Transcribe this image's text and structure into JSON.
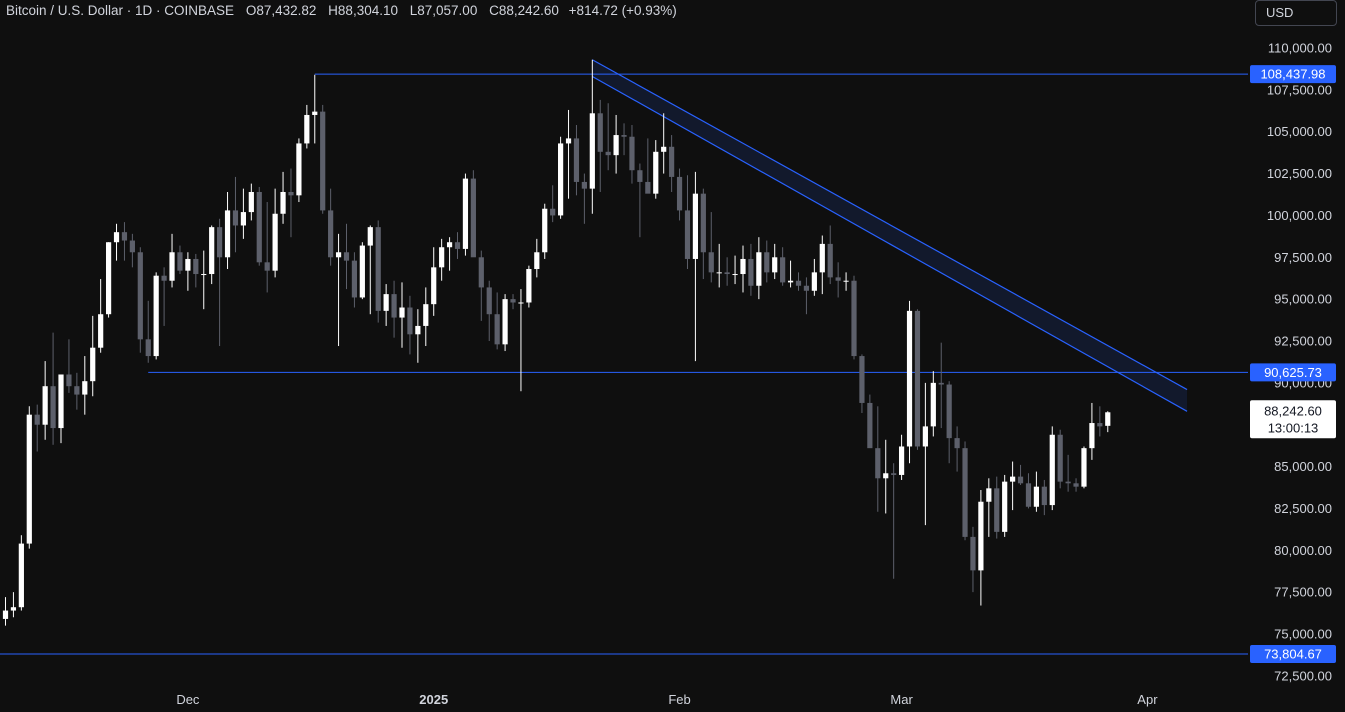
{
  "legend": {
    "symbol": "Bitcoin / U.S. Dollar · 1D · COINBASE",
    "open_label": "O",
    "open": "87,432.82",
    "high_label": "H",
    "high": "88,304.10",
    "low_label": "L",
    "low": "87,057.00",
    "close_label": "C",
    "close": "88,242.60",
    "change": "+814.72 (+0.93%)"
  },
  "currency": "USD",
  "colors": {
    "background": "#0f0f0f",
    "up_candle": "#ffffff",
    "down_candle": "#5d606b",
    "line": "#2962ff",
    "badge": "#2962ff",
    "price_badge": "#ffffff"
  },
  "chart_data": {
    "type": "candlestick",
    "y_axis": {
      "ticks": [
        "110,000.00",
        "107,500.00",
        "105,000.00",
        "102,500.00",
        "100,000.00",
        "97,500.00",
        "95,000.00",
        "92,500.00",
        "90,000.00",
        "87,500.00",
        "85,000.00",
        "82,500.00",
        "80,000.00",
        "77,500.00",
        "75,000.00",
        "72,500.00"
      ],
      "tick_values": [
        110000,
        107500,
        105000,
        102500,
        100000,
        97500,
        95000,
        92500,
        90000,
        87500,
        85000,
        82500,
        80000,
        77500,
        75000,
        72500
      ],
      "ylim": [
        72500,
        110000
      ]
    },
    "x_axis": {
      "labels": [
        {
          "text": "Dec",
          "index": 23,
          "bold": false
        },
        {
          "text": "2025",
          "index": 54,
          "bold": true
        },
        {
          "text": "Feb",
          "index": 85,
          "bold": false
        },
        {
          "text": "Mar",
          "index": 113,
          "bold": false
        },
        {
          "text": "Apr",
          "index": 144,
          "bold": false
        }
      ]
    },
    "horizontal_levels": [
      {
        "label": "108,437.98",
        "value": 108437.98,
        "start_index": 39
      },
      {
        "label": "90,625.73",
        "value": 90625.73,
        "start_index": 18
      },
      {
        "label": "73,804.67",
        "value": 73804.67,
        "start_index": 0
      }
    ],
    "trend_channel": {
      "upper": {
        "start_index": 74,
        "start_value": 109300,
        "end_index": 149,
        "end_value": 89600
      },
      "lower": {
        "start_index": 74,
        "start_value": 108300,
        "end_index": 149,
        "end_value": 88300
      }
    },
    "current_price": {
      "label": "88,242.60",
      "value": 88242.6,
      "countdown": "13:00:13"
    },
    "candles": [
      {
        "o": 75900,
        "h": 77200,
        "l": 75500,
        "c": 76400
      },
      {
        "o": 76400,
        "h": 77500,
        "l": 76000,
        "c": 76600
      },
      {
        "o": 76600,
        "h": 80900,
        "l": 76400,
        "c": 80400
      },
      {
        "o": 80400,
        "h": 88600,
        "l": 80100,
        "c": 88100
      },
      {
        "o": 88100,
        "h": 88700,
        "l": 85900,
        "c": 87500
      },
      {
        "o": 87500,
        "h": 91300,
        "l": 86600,
        "c": 89800
      },
      {
        "o": 89800,
        "h": 93000,
        "l": 86300,
        "c": 87300
      },
      {
        "o": 87300,
        "h": 90500,
        "l": 86400,
        "c": 90500
      },
      {
        "o": 90500,
        "h": 92600,
        "l": 89400,
        "c": 89800
      },
      {
        "o": 89800,
        "h": 90600,
        "l": 88400,
        "c": 89300
      },
      {
        "o": 89300,
        "h": 91600,
        "l": 88100,
        "c": 90100
      },
      {
        "o": 90100,
        "h": 94000,
        "l": 89200,
        "c": 92100
      },
      {
        "o": 92100,
        "h": 96200,
        "l": 91800,
        "c": 94100
      },
      {
        "o": 94100,
        "h": 98400,
        "l": 93900,
        "c": 98400
      },
      {
        "o": 98400,
        "h": 99500,
        "l": 97300,
        "c": 99000
      },
      {
        "o": 99000,
        "h": 99600,
        "l": 97300,
        "c": 98500
      },
      {
        "o": 98500,
        "h": 98900,
        "l": 96900,
        "c": 97800
      },
      {
        "o": 97800,
        "h": 98100,
        "l": 91800,
        "c": 92600
      },
      {
        "o": 92600,
        "h": 94900,
        "l": 91200,
        "c": 91600
      },
      {
        "o": 91600,
        "h": 96600,
        "l": 91400,
        "c": 96400
      },
      {
        "o": 96400,
        "h": 96900,
        "l": 93400,
        "c": 96100
      },
      {
        "o": 96100,
        "h": 98900,
        "l": 95700,
        "c": 97800
      },
      {
        "o": 97800,
        "h": 98200,
        "l": 96500,
        "c": 96700
      },
      {
        "o": 96700,
        "h": 97800,
        "l": 95500,
        "c": 97400
      },
      {
        "o": 97400,
        "h": 97700,
        "l": 95700,
        "c": 96500
      },
      {
        "o": 96500,
        "h": 97900,
        "l": 94400,
        "c": 96500
      },
      {
        "o": 96500,
        "h": 99400,
        "l": 95900,
        "c": 99300
      },
      {
        "o": 99300,
        "h": 99800,
        "l": 92200,
        "c": 97500
      },
      {
        "o": 97500,
        "h": 101400,
        "l": 96800,
        "c": 100300
      },
      {
        "o": 100300,
        "h": 102300,
        "l": 97800,
        "c": 99400
      },
      {
        "o": 99400,
        "h": 101600,
        "l": 98600,
        "c": 100200
      },
      {
        "o": 100200,
        "h": 101900,
        "l": 99700,
        "c": 101400
      },
      {
        "o": 101400,
        "h": 101700,
        "l": 97000,
        "c": 97200
      },
      {
        "o": 97200,
        "h": 100800,
        "l": 95400,
        "c": 96700
      },
      {
        "o": 96700,
        "h": 101600,
        "l": 96300,
        "c": 100100
      },
      {
        "o": 100100,
        "h": 102600,
        "l": 99500,
        "c": 101400
      },
      {
        "o": 101400,
        "h": 102800,
        "l": 98700,
        "c": 101200
      },
      {
        "o": 101200,
        "h": 104600,
        "l": 100800,
        "c": 104300
      },
      {
        "o": 104300,
        "h": 106600,
        "l": 104000,
        "c": 106000
      },
      {
        "o": 106000,
        "h": 108400,
        "l": 104300,
        "c": 106200
      },
      {
        "o": 106200,
        "h": 106600,
        "l": 100100,
        "c": 100300
      },
      {
        "o": 100300,
        "h": 101600,
        "l": 97000,
        "c": 97500
      },
      {
        "o": 97500,
        "h": 98900,
        "l": 92200,
        "c": 97800
      },
      {
        "o": 97800,
        "h": 99500,
        "l": 95600,
        "c": 97300
      },
      {
        "o": 97300,
        "h": 97800,
        "l": 94500,
        "c": 95100
      },
      {
        "o": 95100,
        "h": 98400,
        "l": 95000,
        "c": 98200
      },
      {
        "o": 98200,
        "h": 99400,
        "l": 94100,
        "c": 99300
      },
      {
        "o": 99300,
        "h": 99700,
        "l": 93600,
        "c": 94300
      },
      {
        "o": 94300,
        "h": 95900,
        "l": 93400,
        "c": 95300
      },
      {
        "o": 95300,
        "h": 96100,
        "l": 92700,
        "c": 93900
      },
      {
        "o": 93900,
        "h": 96000,
        "l": 92100,
        "c": 94500
      },
      {
        "o": 94500,
        "h": 95200,
        "l": 91700,
        "c": 92900
      },
      {
        "o": 92900,
        "h": 94400,
        "l": 91200,
        "c": 93400
      },
      {
        "o": 93400,
        "h": 95700,
        "l": 92200,
        "c": 94700
      },
      {
        "o": 94700,
        "h": 98100,
        "l": 94000,
        "c": 96900
      },
      {
        "o": 96900,
        "h": 98600,
        "l": 96100,
        "c": 98100
      },
      {
        "o": 98100,
        "h": 98700,
        "l": 96700,
        "c": 98400
      },
      {
        "o": 98400,
        "h": 99000,
        "l": 97400,
        "c": 98000
      },
      {
        "o": 98000,
        "h": 102500,
        "l": 97600,
        "c": 102200
      },
      {
        "o": 102200,
        "h": 102700,
        "l": 97800,
        "c": 97500
      },
      {
        "o": 97500,
        "h": 97900,
        "l": 93700,
        "c": 95700
      },
      {
        "o": 95700,
        "h": 96100,
        "l": 92500,
        "c": 94100
      },
      {
        "o": 94100,
        "h": 95400,
        "l": 92000,
        "c": 92300
      },
      {
        "o": 92300,
        "h": 95300,
        "l": 91900,
        "c": 95000
      },
      {
        "o": 95000,
        "h": 95300,
        "l": 94400,
        "c": 94800
      },
      {
        "o": 94800,
        "h": 95600,
        "l": 89500,
        "c": 94800
      },
      {
        "o": 94800,
        "h": 97000,
        "l": 94500,
        "c": 96800
      },
      {
        "o": 96800,
        "h": 98600,
        "l": 96300,
        "c": 97800
      },
      {
        "o": 97800,
        "h": 100700,
        "l": 97400,
        "c": 100400
      },
      {
        "o": 100400,
        "h": 101800,
        "l": 99600,
        "c": 100000
      },
      {
        "o": 100000,
        "h": 104700,
        "l": 99800,
        "c": 104300
      },
      {
        "o": 104300,
        "h": 106300,
        "l": 101000,
        "c": 104600
      },
      {
        "o": 104600,
        "h": 105400,
        "l": 101200,
        "c": 102000
      },
      {
        "o": 102000,
        "h": 102500,
        "l": 99500,
        "c": 101600
      },
      {
        "o": 101600,
        "h": 109300,
        "l": 100100,
        "c": 106100
      },
      {
        "o": 106100,
        "h": 106900,
        "l": 101400,
        "c": 103800
      },
      {
        "o": 103800,
        "h": 106700,
        "l": 102700,
        "c": 103600
      },
      {
        "o": 103600,
        "h": 106000,
        "l": 102500,
        "c": 104800
      },
      {
        "o": 104800,
        "h": 105500,
        "l": 103600,
        "c": 104700
      },
      {
        "o": 104700,
        "h": 105400,
        "l": 101900,
        "c": 102700
      },
      {
        "o": 102700,
        "h": 103100,
        "l": 98700,
        "c": 102000
      },
      {
        "o": 102000,
        "h": 104600,
        "l": 101500,
        "c": 101300
      },
      {
        "o": 101300,
        "h": 104500,
        "l": 101000,
        "c": 103800
      },
      {
        "o": 103800,
        "h": 106100,
        "l": 102500,
        "c": 104100
      },
      {
        "o": 104100,
        "h": 104800,
        "l": 101400,
        "c": 102300
      },
      {
        "o": 102300,
        "h": 102800,
        "l": 99700,
        "c": 100300
      },
      {
        "o": 100300,
        "h": 102400,
        "l": 96800,
        "c": 97400
      },
      {
        "o": 97400,
        "h": 102600,
        "l": 91300,
        "c": 101300
      },
      {
        "o": 101300,
        "h": 101600,
        "l": 96200,
        "c": 97800
      },
      {
        "o": 97800,
        "h": 100200,
        "l": 96000,
        "c": 96600
      },
      {
        "o": 96600,
        "h": 98300,
        "l": 95700,
        "c": 96600
      },
      {
        "o": 96600,
        "h": 97500,
        "l": 95800,
        "c": 96500
      },
      {
        "o": 96500,
        "h": 97600,
        "l": 95900,
        "c": 96500
      },
      {
        "o": 96500,
        "h": 98200,
        "l": 95400,
        "c": 97400
      },
      {
        "o": 97400,
        "h": 98300,
        "l": 95200,
        "c": 95800
      },
      {
        "o": 95800,
        "h": 98700,
        "l": 95000,
        "c": 97800
      },
      {
        "o": 97800,
        "h": 98500,
        "l": 96000,
        "c": 96600
      },
      {
        "o": 96600,
        "h": 98300,
        "l": 96200,
        "c": 97500
      },
      {
        "o": 97500,
        "h": 98100,
        "l": 95800,
        "c": 96000
      },
      {
        "o": 96000,
        "h": 97300,
        "l": 95700,
        "c": 96100
      },
      {
        "o": 96100,
        "h": 96600,
        "l": 95500,
        "c": 95800
      },
      {
        "o": 95800,
        "h": 96300,
        "l": 94100,
        "c": 95500
      },
      {
        "o": 95500,
        "h": 97400,
        "l": 95200,
        "c": 96600
      },
      {
        "o": 96600,
        "h": 98800,
        "l": 95300,
        "c": 98300
      },
      {
        "o": 98300,
        "h": 99400,
        "l": 95900,
        "c": 96300
      },
      {
        "o": 96300,
        "h": 97200,
        "l": 95100,
        "c": 96100
      },
      {
        "o": 96100,
        "h": 96600,
        "l": 95500,
        "c": 96100
      },
      {
        "o": 96100,
        "h": 96400,
        "l": 91400,
        "c": 91600
      },
      {
        "o": 91600,
        "h": 91700,
        "l": 88200,
        "c": 88800
      },
      {
        "o": 88800,
        "h": 89300,
        "l": 86200,
        "c": 86100
      },
      {
        "o": 86100,
        "h": 88600,
        "l": 82300,
        "c": 84300
      },
      {
        "o": 84300,
        "h": 86600,
        "l": 82200,
        "c": 84600
      },
      {
        "o": 84600,
        "h": 85200,
        "l": 78300,
        "c": 84500
      },
      {
        "o": 84500,
        "h": 86900,
        "l": 84200,
        "c": 86200
      },
      {
        "o": 86200,
        "h": 94900,
        "l": 85200,
        "c": 94300
      },
      {
        "o": 94300,
        "h": 94400,
        "l": 86000,
        "c": 86200
      },
      {
        "o": 86200,
        "h": 90000,
        "l": 81500,
        "c": 87400
      },
      {
        "o": 87400,
        "h": 90700,
        "l": 86800,
        "c": 90000
      },
      {
        "o": 90000,
        "h": 92400,
        "l": 87300,
        "c": 89900
      },
      {
        "o": 89900,
        "h": 90100,
        "l": 85200,
        "c": 86700
      },
      {
        "o": 86700,
        "h": 87400,
        "l": 84700,
        "c": 86100
      },
      {
        "o": 86100,
        "h": 86500,
        "l": 80600,
        "c": 80800
      },
      {
        "o": 80800,
        "h": 81400,
        "l": 77500,
        "c": 78800
      },
      {
        "o": 78800,
        "h": 83600,
        "l": 76700,
        "c": 82900
      },
      {
        "o": 82900,
        "h": 84300,
        "l": 80800,
        "c": 83700
      },
      {
        "o": 83700,
        "h": 84400,
        "l": 80700,
        "c": 81100
      },
      {
        "o": 81100,
        "h": 84500,
        "l": 80800,
        "c": 84100
      },
      {
        "o": 84100,
        "h": 85300,
        "l": 82400,
        "c": 84400
      },
      {
        "o": 84400,
        "h": 85100,
        "l": 83900,
        "c": 84000
      },
      {
        "o": 84000,
        "h": 84600,
        "l": 82500,
        "c": 82600
      },
      {
        "o": 82600,
        "h": 84700,
        "l": 82300,
        "c": 83800
      },
      {
        "o": 83800,
        "h": 84200,
        "l": 82100,
        "c": 82700
      },
      {
        "o": 82700,
        "h": 87400,
        "l": 82400,
        "c": 86900
      },
      {
        "o": 86900,
        "h": 87200,
        "l": 83700,
        "c": 84100
      },
      {
        "o": 84100,
        "h": 85700,
        "l": 83500,
        "c": 84000
      },
      {
        "o": 84000,
        "h": 84300,
        "l": 83500,
        "c": 83800
      },
      {
        "o": 83800,
        "h": 86200,
        "l": 83700,
        "c": 86100
      },
      {
        "o": 86100,
        "h": 88800,
        "l": 85400,
        "c": 87600
      },
      {
        "o": 87600,
        "h": 88600,
        "l": 86800,
        "c": 87400
      },
      {
        "o": 87432.82,
        "h": 88304.1,
        "l": 87057.0,
        "c": 88242.6
      }
    ]
  }
}
